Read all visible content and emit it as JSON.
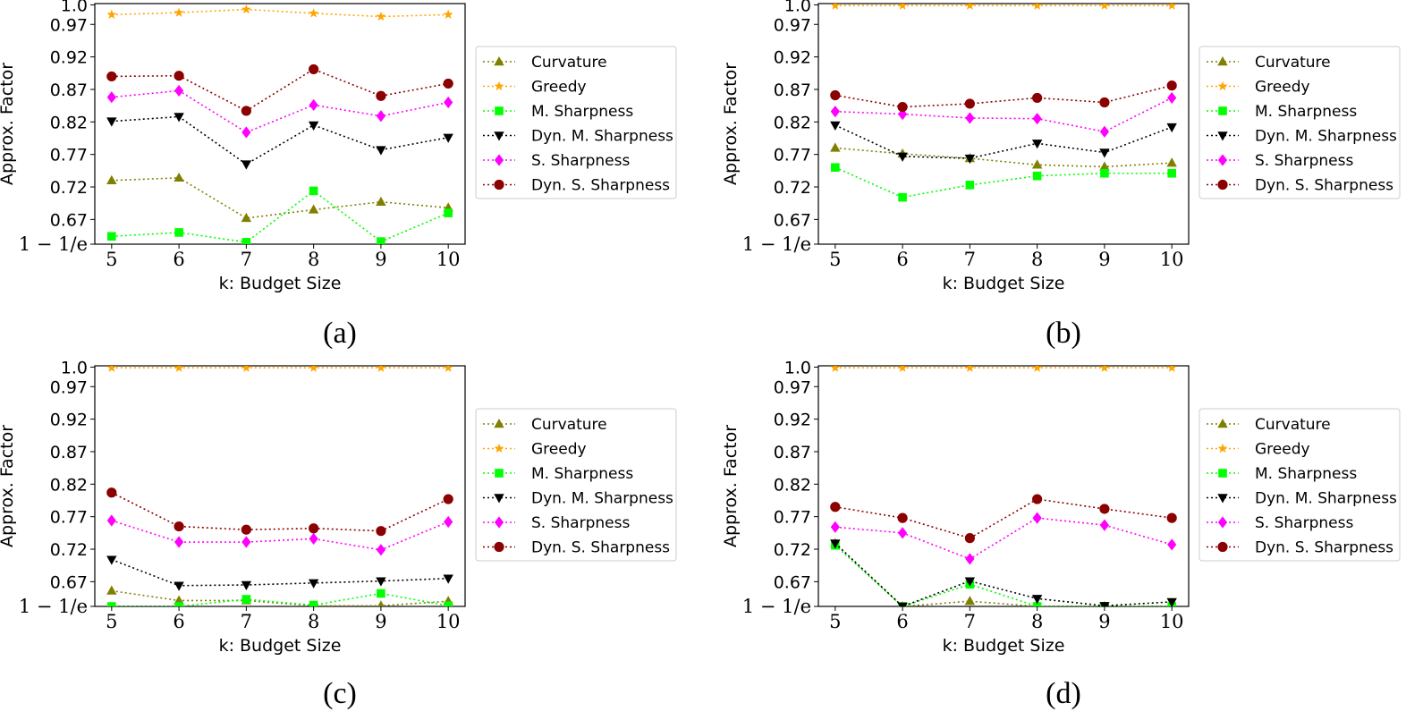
{
  "chart_data": [
    {
      "type": "line",
      "caption": "(a)",
      "xlabel": "k: Budget Size",
      "ylabel": "Approx. Factor",
      "x": [
        5,
        6,
        7,
        8,
        9,
        10
      ],
      "ytick_labels": [
        "1 − 1/e",
        "0.67",
        "0.72",
        "0.77",
        "0.82",
        "0.87",
        "0.92",
        "0.97",
        "1.0"
      ],
      "ytick_values": [
        0.632,
        0.67,
        0.72,
        0.77,
        0.82,
        0.87,
        0.92,
        0.97,
        1.0
      ],
      "ylim": [
        0.632,
        1.0
      ],
      "series": [
        {
          "name": "Curvature",
          "color": "#808000",
          "marker": "triangle-up",
          "values": [
            0.73,
            0.734,
            0.672,
            0.685,
            0.697,
            0.688
          ]
        },
        {
          "name": "Greedy",
          "color": "#FFA500",
          "marker": "star",
          "values": [
            0.985,
            0.988,
            0.993,
            0.987,
            0.982,
            0.985
          ]
        },
        {
          "name": "M. Sharpness",
          "color": "#00FF00",
          "marker": "square",
          "values": [
            0.644,
            0.65,
            0.635,
            0.714,
            0.636,
            0.68
          ]
        },
        {
          "name": "Dyn. M. Sharpness",
          "color": "#000000",
          "marker": "triangle-down",
          "values": [
            0.821,
            0.828,
            0.755,
            0.815,
            0.777,
            0.796
          ]
        },
        {
          "name": "S. Sharpness",
          "color": "#FF00FF",
          "marker": "diamond",
          "values": [
            0.858,
            0.868,
            0.804,
            0.846,
            0.829,
            0.85
          ]
        },
        {
          "name": "Dyn. S. Sharpness",
          "color": "#8B0000",
          "marker": "circle",
          "values": [
            0.89,
            0.891,
            0.837,
            0.901,
            0.86,
            0.879
          ]
        }
      ]
    },
    {
      "type": "line",
      "caption": "(b)",
      "xlabel": "k: Budget Size",
      "ylabel": "Approx. Factor",
      "x": [
        5,
        6,
        7,
        8,
        9,
        10
      ],
      "ytick_labels": [
        "1 − 1/e",
        "0.67",
        "0.72",
        "0.77",
        "0.82",
        "0.87",
        "0.92",
        "0.97",
        "1.0"
      ],
      "ytick_values": [
        0.632,
        0.67,
        0.72,
        0.77,
        0.82,
        0.87,
        0.92,
        0.97,
        1.0
      ],
      "ylim": [
        0.632,
        1.0
      ],
      "series": [
        {
          "name": "Curvature",
          "color": "#808000",
          "marker": "triangle-up",
          "values": [
            0.78,
            0.771,
            0.764,
            0.754,
            0.751,
            0.757
          ]
        },
        {
          "name": "Greedy",
          "color": "#FFA500",
          "marker": "star",
          "values": [
            0.999,
            0.999,
            0.999,
            0.999,
            0.999,
            0.999
          ]
        },
        {
          "name": "M. Sharpness",
          "color": "#00FF00",
          "marker": "square",
          "values": [
            0.75,
            0.704,
            0.723,
            0.737,
            0.741,
            0.741
          ]
        },
        {
          "name": "Dyn. M. Sharpness",
          "color": "#000000",
          "marker": "triangle-down",
          "values": [
            0.815,
            0.767,
            0.764,
            0.787,
            0.773,
            0.812
          ]
        },
        {
          "name": "S. Sharpness",
          "color": "#FF00FF",
          "marker": "diamond",
          "values": [
            0.836,
            0.832,
            0.826,
            0.825,
            0.805,
            0.857
          ]
        },
        {
          "name": "Dyn. S. Sharpness",
          "color": "#8B0000",
          "marker": "circle",
          "values": [
            0.861,
            0.843,
            0.848,
            0.857,
            0.85,
            0.876
          ]
        }
      ]
    },
    {
      "type": "line",
      "caption": "(c)",
      "xlabel": "k: Budget Size",
      "ylabel": "Approx. Factor",
      "x": [
        5,
        6,
        7,
        8,
        9,
        10
      ],
      "ytick_labels": [
        "1 − 1/e",
        "0.67",
        "0.72",
        "0.77",
        "0.82",
        "0.87",
        "0.92",
        "0.97",
        "1.0"
      ],
      "ytick_values": [
        0.632,
        0.67,
        0.72,
        0.77,
        0.82,
        0.87,
        0.92,
        0.97,
        1.0
      ],
      "ylim": [
        0.632,
        1.0
      ],
      "series": [
        {
          "name": "Curvature",
          "color": "#808000",
          "marker": "triangle-up",
          "values": [
            0.656,
            0.641,
            0.641,
            0.633,
            0.633,
            0.64
          ]
        },
        {
          "name": "Greedy",
          "color": "#FFA500",
          "marker": "star",
          "values": [
            0.999,
            0.999,
            0.999,
            0.999,
            0.999,
            0.999
          ]
        },
        {
          "name": "M. Sharpness",
          "color": "#00FF00",
          "marker": "square",
          "values": [
            0.632,
            0.632,
            0.643,
            0.634,
            0.652,
            0.633
          ]
        },
        {
          "name": "Dyn. M. Sharpness",
          "color": "#000000",
          "marker": "triangle-down",
          "values": [
            0.704,
            0.664,
            0.665,
            0.668,
            0.671,
            0.675
          ]
        },
        {
          "name": "S. Sharpness",
          "color": "#FF00FF",
          "marker": "diamond",
          "values": [
            0.764,
            0.731,
            0.731,
            0.736,
            0.719,
            0.762
          ]
        },
        {
          "name": "Dyn. S. Sharpness",
          "color": "#8B0000",
          "marker": "circle",
          "values": [
            0.807,
            0.755,
            0.75,
            0.752,
            0.748,
            0.797
          ]
        }
      ]
    },
    {
      "type": "line",
      "caption": "(d)",
      "xlabel": "k: Budget Size",
      "ylabel": "Approx. Factor",
      "x": [
        5,
        6,
        7,
        8,
        9,
        10
      ],
      "ytick_labels": [
        "1 − 1/e",
        "0.67",
        "0.72",
        "0.77",
        "0.82",
        "0.87",
        "0.92",
        "0.97",
        "1.0"
      ],
      "ytick_values": [
        0.632,
        0.67,
        0.72,
        0.77,
        0.82,
        0.87,
        0.92,
        0.97,
        1.0
      ],
      "ylim": [
        0.632,
        1.0
      ],
      "series": [
        {
          "name": "Curvature",
          "color": "#808000",
          "marker": "triangle-up",
          "values": [
            0.729,
            0.632,
            0.64,
            0.632,
            0.632,
            0.632
          ]
        },
        {
          "name": "Greedy",
          "color": "#FFA500",
          "marker": "star",
          "values": [
            0.999,
            0.999,
            0.999,
            0.999,
            0.999,
            0.999
          ]
        },
        {
          "name": "M. Sharpness",
          "color": "#00FF00",
          "marker": "square",
          "values": [
            0.726,
            0.632,
            0.666,
            0.632,
            0.632,
            0.632
          ]
        },
        {
          "name": "Dyn. M. Sharpness",
          "color": "#000000",
          "marker": "triangle-down",
          "values": [
            0.729,
            0.632,
            0.671,
            0.644,
            0.633,
            0.639
          ]
        },
        {
          "name": "S. Sharpness",
          "color": "#FF00FF",
          "marker": "diamond",
          "values": [
            0.754,
            0.745,
            0.705,
            0.768,
            0.757,
            0.727
          ]
        },
        {
          "name": "Dyn. S. Sharpness",
          "color": "#8B0000",
          "marker": "circle",
          "values": [
            0.785,
            0.768,
            0.737,
            0.797,
            0.782,
            0.768
          ]
        }
      ]
    }
  ]
}
